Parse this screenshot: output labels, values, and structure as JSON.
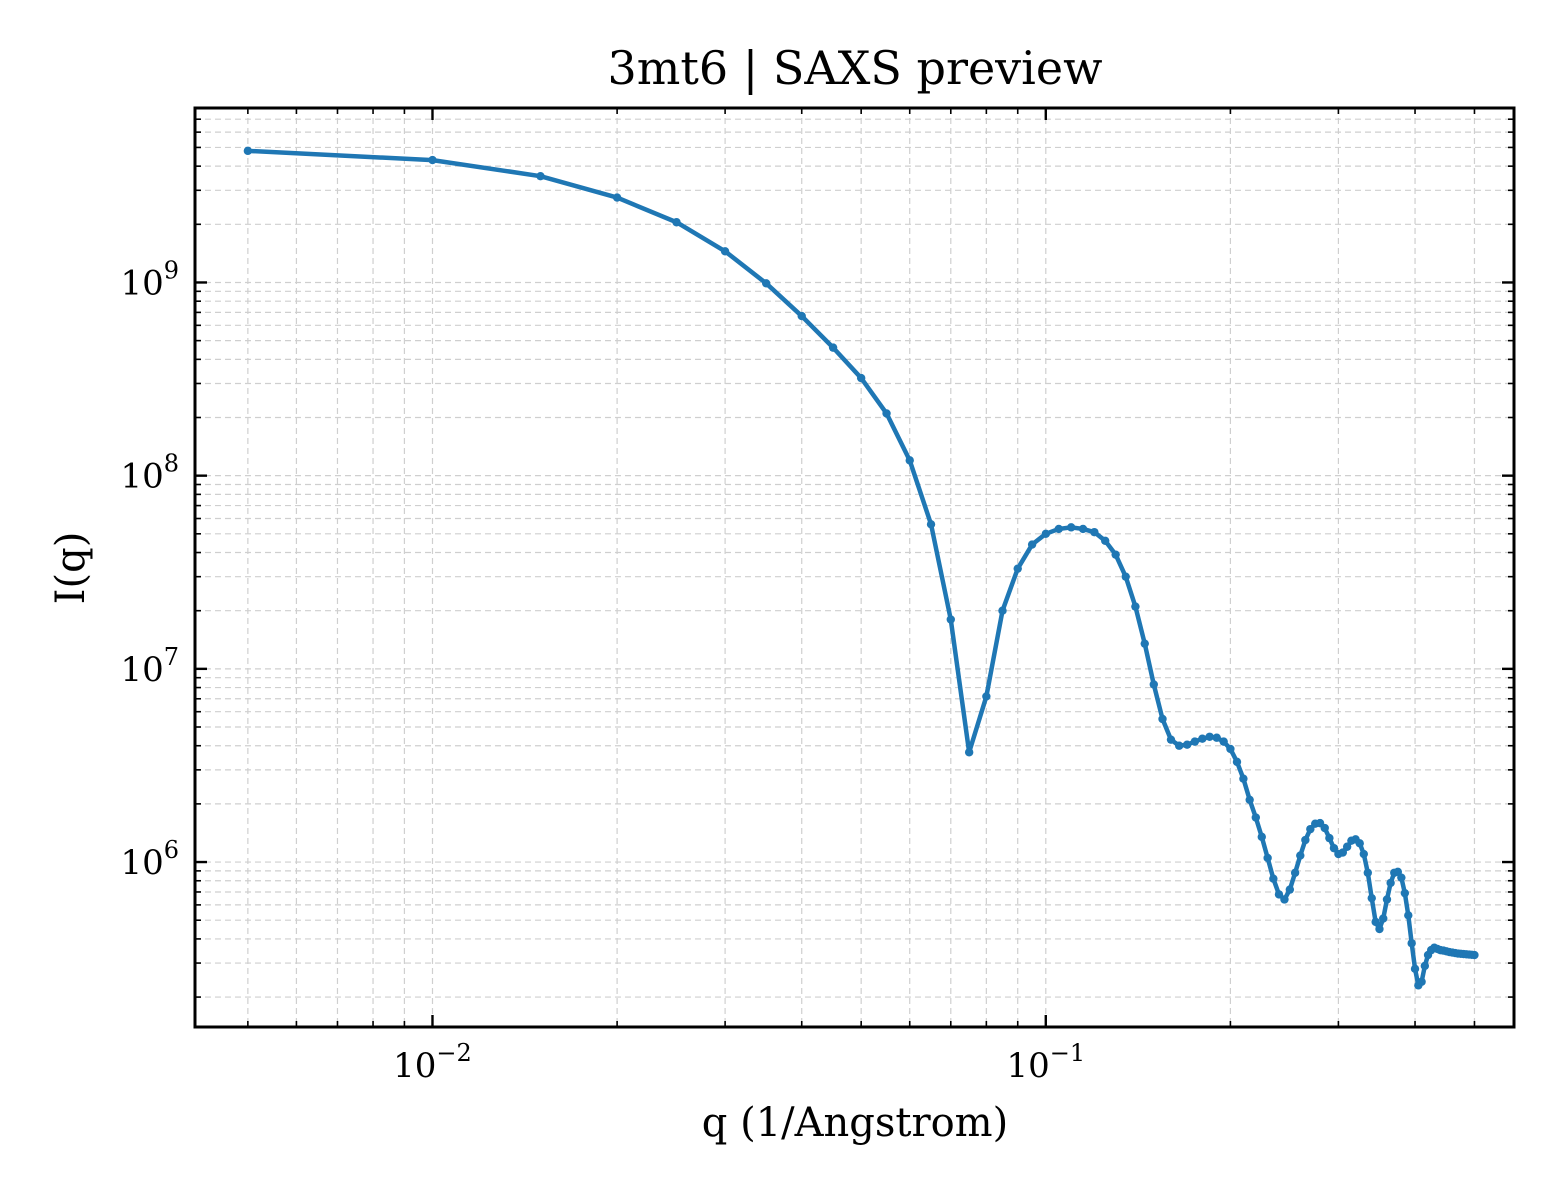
{
  "chart_data": {
    "type": "line",
    "title": "3mt6 | SAXS preview",
    "xlabel": "q (1/Angstrom)",
    "ylabel": "I(q)",
    "xscale": "log",
    "yscale": "log",
    "xlim": [
      0.0041,
      0.58
    ],
    "ylim": [
      140000,
      8000000000
    ],
    "x_ticks": [
      {
        "value": 0.01,
        "base": "10",
        "exp": "−2"
      },
      {
        "value": 0.1,
        "base": "10",
        "exp": "−1"
      }
    ],
    "y_ticks": [
      {
        "value": 1000000,
        "base": "10",
        "exp": "6"
      },
      {
        "value": 10000000,
        "base": "10",
        "exp": "7"
      },
      {
        "value": 100000000,
        "base": "10",
        "exp": "8"
      },
      {
        "value": 1000000000,
        "base": "10",
        "exp": "9"
      }
    ],
    "grid": true,
    "line_color": "#1f77b4",
    "series": [
      {
        "x": [
          0.005,
          0.01,
          0.015,
          0.02,
          0.025,
          0.03,
          0.035,
          0.04,
          0.045,
          0.05,
          0.055,
          0.06,
          0.065,
          0.07,
          0.075,
          0.08,
          0.085,
          0.09,
          0.095,
          0.1,
          0.105,
          0.11,
          0.115,
          0.12,
          0.125,
          0.13,
          0.135,
          0.14,
          0.145,
          0.15,
          0.155,
          0.16,
          0.165,
          0.17,
          0.175,
          0.18,
          0.185,
          0.19,
          0.195,
          0.2,
          0.205,
          0.21,
          0.215,
          0.22,
          0.225,
          0.23,
          0.235,
          0.24,
          0.245,
          0.25,
          0.255,
          0.26,
          0.265,
          0.27,
          0.275,
          0.28,
          0.285,
          0.29,
          0.295,
          0.3,
          0.305,
          0.31,
          0.315,
          0.32,
          0.325,
          0.33,
          0.335,
          0.34,
          0.345,
          0.35,
          0.355,
          0.36,
          0.365,
          0.37,
          0.375,
          0.38,
          0.385,
          0.39,
          0.395,
          0.4,
          0.405,
          0.41,
          0.415,
          0.42,
          0.425,
          0.43,
          0.435,
          0.44,
          0.445,
          0.45,
          0.455,
          0.46,
          0.465,
          0.47,
          0.475,
          0.48,
          0.485,
          0.49,
          0.495,
          0.5
        ],
        "y": [
          4800000000,
          4300000000,
          3550000000,
          2750000000,
          2050000000,
          1450000000,
          990000000,
          670000000,
          460000000,
          320000000,
          210000000,
          120000000,
          56000000,
          18000000,
          3700000,
          7200000,
          20000000,
          33000000,
          44000000,
          50000000,
          53000000,
          54000000,
          53000000,
          51000000,
          46000000,
          39000000,
          30000000,
          21000000,
          13500000,
          8300000,
          5500000,
          4300000,
          4000000,
          4050000,
          4200000,
          4350000,
          4450000,
          4400000,
          4200000,
          3850000,
          3300000,
          2700000,
          2100000,
          1700000,
          1350000,
          1050000,
          820000,
          680000,
          640000,
          720000,
          880000,
          1080000,
          1300000,
          1480000,
          1580000,
          1590000,
          1500000,
          1330000,
          1180000,
          1100000,
          1120000,
          1200000,
          1290000,
          1310000,
          1250000,
          1100000,
          880000,
          650000,
          490000,
          450000,
          510000,
          640000,
          780000,
          880000,
          890000,
          830000,
          690000,
          530000,
          380000,
          280000,
          230000,
          240000,
          290000,
          330000,
          350000,
          360000,
          355000,
          350000,
          348000,
          345000,
          342000,
          340000,
          338000,
          336000,
          335000,
          334000,
          333000,
          332000,
          331000,
          330000
        ]
      }
    ]
  }
}
